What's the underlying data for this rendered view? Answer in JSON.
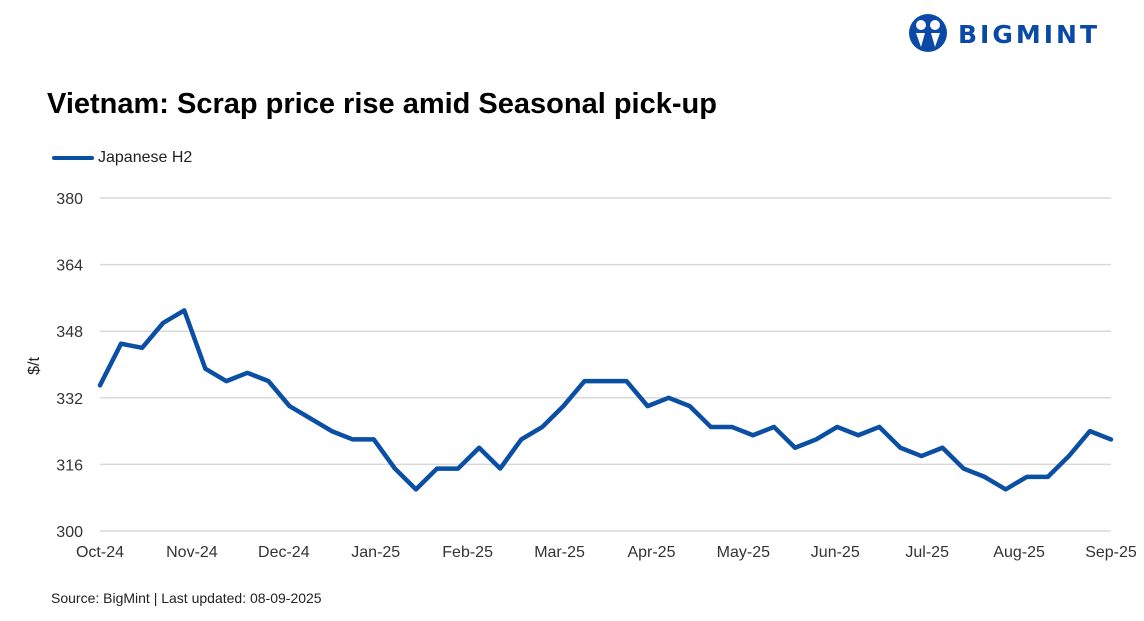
{
  "logo": {
    "text": "BIGMINT"
  },
  "chart_data": {
    "type": "line",
    "title": "Vietnam: Scrap price rise amid Seasonal pick-up",
    "xlabel": "",
    "ylabel": "$/t",
    "ylim": [
      300,
      380
    ],
    "yticks": [
      300,
      316,
      332,
      348,
      364,
      380
    ],
    "xtick_labels": [
      "Oct-24",
      "Nov-24",
      "Dec-24",
      "Jan-25",
      "Feb-25",
      "Mar-25",
      "Apr-25",
      "May-25",
      "Jun-25",
      "Jul-25",
      "Aug-25",
      "Sep-25"
    ],
    "grid": true,
    "legend_position": "top-left",
    "series": [
      {
        "name": "Japanese H2",
        "color": "#0a4fa3",
        "values": [
          335,
          345,
          344,
          350,
          353,
          339,
          336,
          338,
          336,
          330,
          327,
          324,
          322,
          322,
          315,
          310,
          315,
          315,
          320,
          315,
          322,
          325,
          330,
          336,
          336,
          336,
          330,
          332,
          330,
          325,
          325,
          323,
          325,
          320,
          322,
          325,
          323,
          325,
          320,
          318,
          320,
          315,
          313,
          310,
          313,
          313,
          318,
          324,
          322
        ]
      }
    ]
  },
  "source": "Source: BigMint | Last updated: 08-09-2025"
}
